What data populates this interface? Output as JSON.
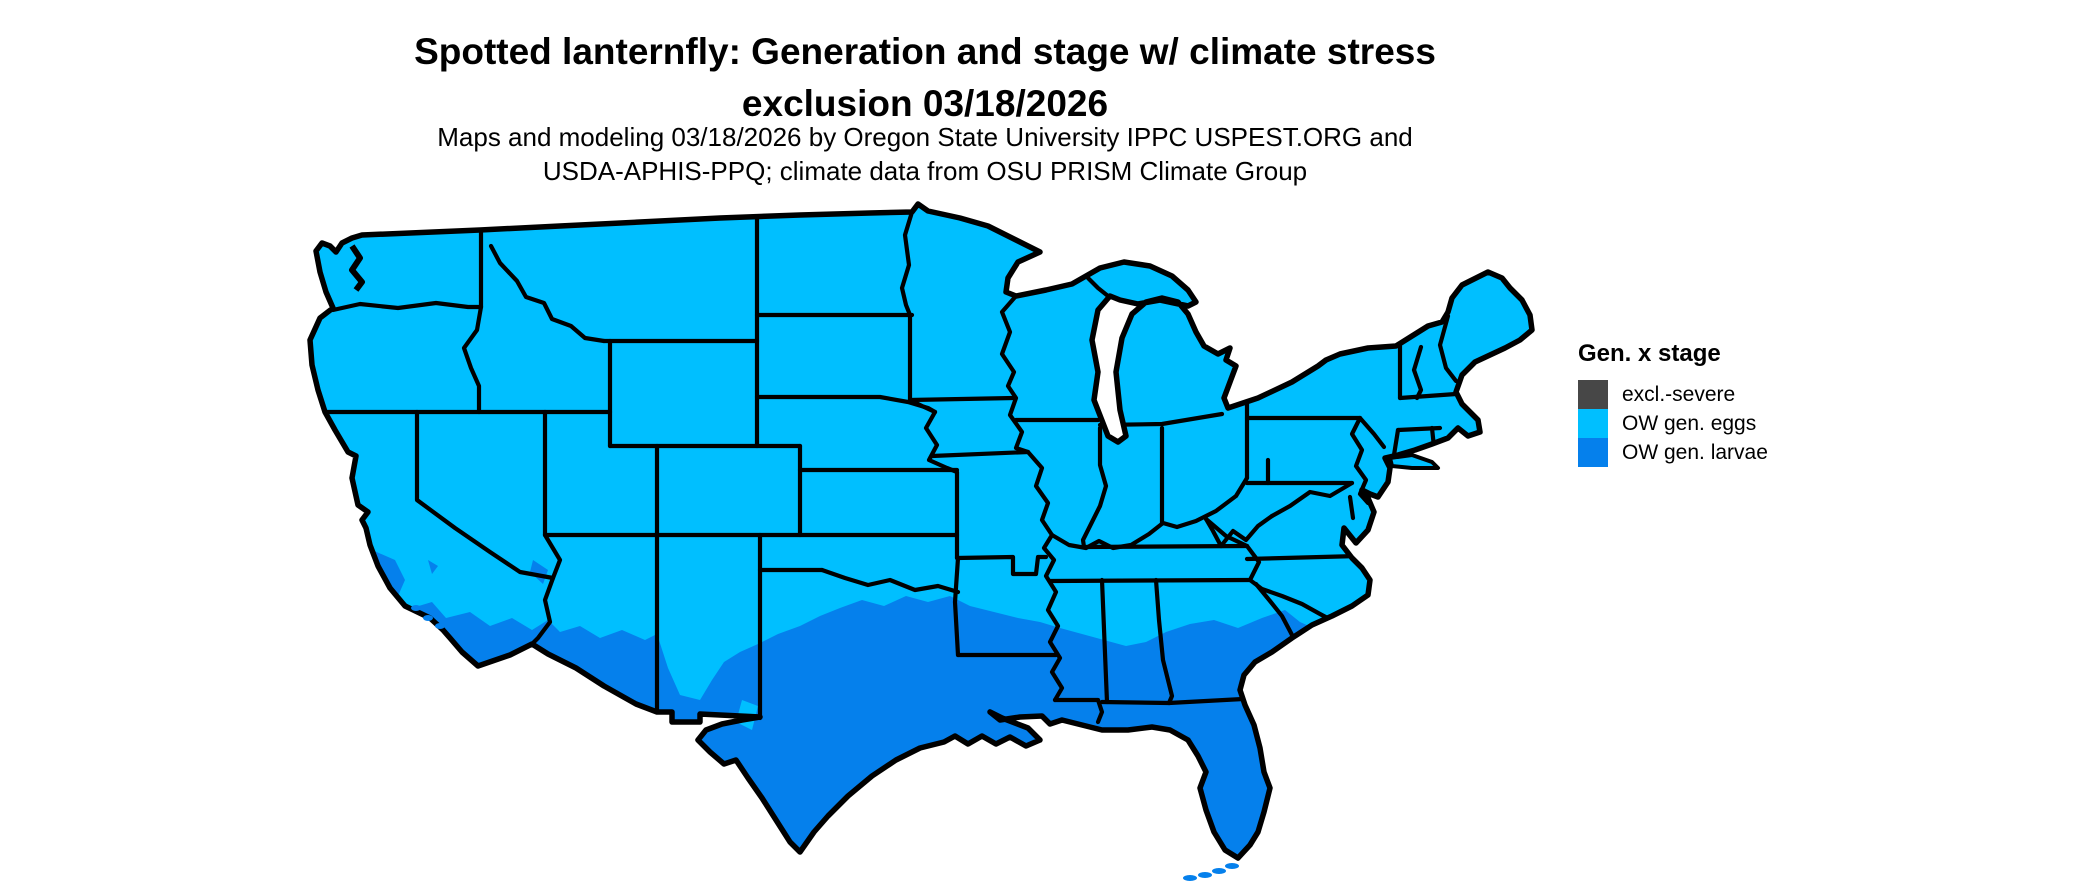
{
  "title": {
    "line1": "Spotted lanternfly: Generation and stage w/ climate stress",
    "line2": "exclusion 03/18/2026"
  },
  "subtitle": {
    "line1": "Maps and modeling 03/18/2026 by Oregon State University IPPC USPEST.ORG and",
    "line2": "USDA-APHIS-PPQ; climate data from OSU PRISM Climate Group"
  },
  "legend": {
    "title": "Gen. x stage",
    "items": [
      {
        "label": "excl.-severe",
        "color": "#474747"
      },
      {
        "label": "OW gen. eggs",
        "color": "#00BFFF"
      },
      {
        "label": "OW gen. larvae",
        "color": "#0580EC"
      }
    ]
  },
  "map": {
    "colors": {
      "eggs": "#00BFFF",
      "larvae": "#0580EC",
      "excluded": "#474747",
      "border": "#000000",
      "background": "#ffffff"
    }
  }
}
